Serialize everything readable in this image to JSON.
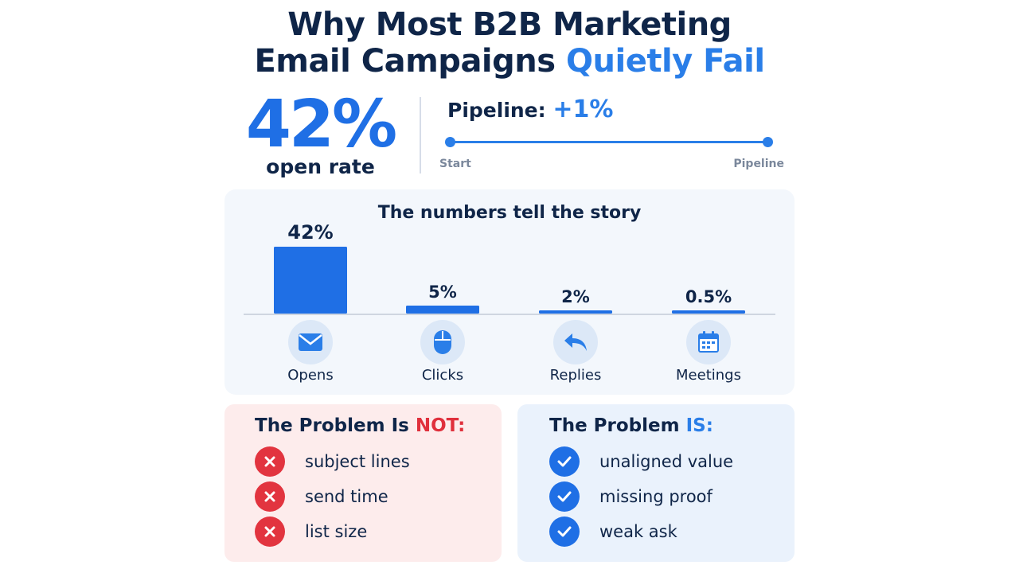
{
  "title": {
    "line1": "Why Most B2B Marketing",
    "line2_main": "Email Campaigns",
    "line2_accent": "Quietly Fail"
  },
  "headline_stat": {
    "value": "42%",
    "label": "open rate"
  },
  "pipeline": {
    "label": "Pipeline:",
    "value": "+1%",
    "start_label": "Start",
    "end_label": "Pipeline"
  },
  "chart_data": {
    "type": "bar",
    "title": "The numbers tell the story",
    "categories": [
      "Opens",
      "Clicks",
      "Replies",
      "Meetings"
    ],
    "values": [
      42,
      5,
      2,
      0.5
    ],
    "value_labels": [
      "42%",
      "5%",
      "2%",
      "0.5%"
    ],
    "icons": [
      "envelope-icon",
      "mouse-icon",
      "reply-arrow-icon",
      "calendar-icon"
    ],
    "ylim": [
      0,
      42
    ],
    "grid": false,
    "legend": "none",
    "bar_color": "#1f6fe5"
  },
  "problem_not": {
    "title_main": "The Problem Is",
    "title_accent": "NOT:",
    "accent_color": "#e0303c",
    "items": [
      "subject lines",
      "send time",
      "list size"
    ]
  },
  "problem_is": {
    "title_main": "The Problem",
    "title_accent": "IS:",
    "accent_color": "#2a7ee8",
    "items": [
      "unaligned value",
      "missing proof",
      "weak ask"
    ]
  }
}
